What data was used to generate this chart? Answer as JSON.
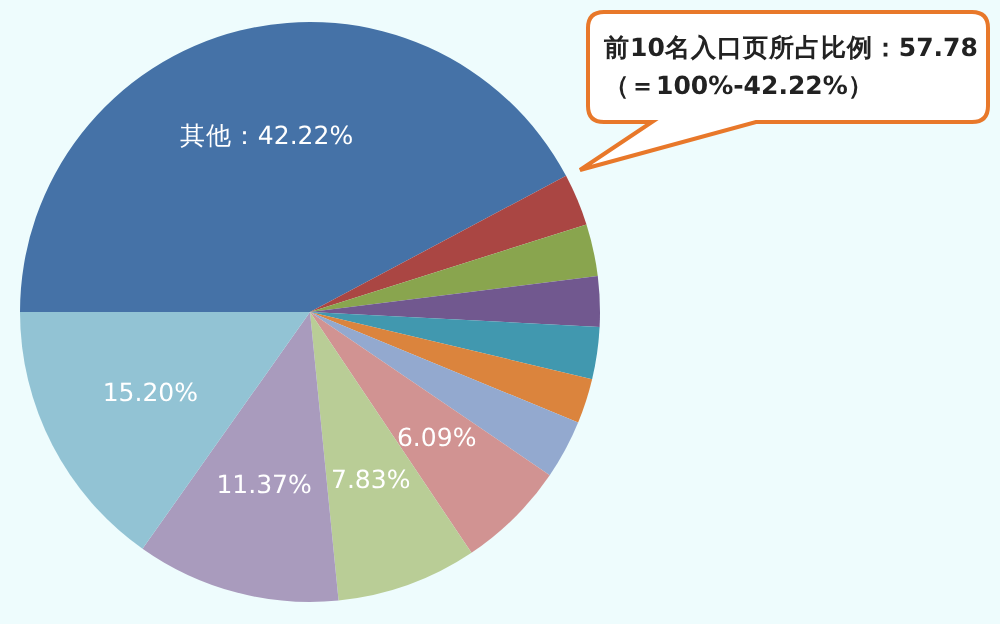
{
  "chart_data": {
    "type": "pie",
    "categories": [
      "其他",
      null,
      null,
      null,
      null,
      null,
      null,
      null,
      null,
      null,
      null
    ],
    "values": [
      42.22,
      2.9,
      2.9,
      2.8,
      2.9,
      2.5,
      3.29,
      6.09,
      7.83,
      11.37,
      15.2
    ],
    "colors": [
      "#4572a7",
      "#aa4643",
      "#89a54e",
      "#71588f",
      "#4198af",
      "#db843d",
      "#93a9cf",
      "#d19392",
      "#b9cd96",
      "#a99bbd",
      "#92c3d4"
    ],
    "value_labels": [
      "42.22%",
      null,
      null,
      null,
      null,
      null,
      null,
      "6.09%",
      "7.83%",
      "11.37%",
      "15.20%"
    ],
    "annotations": [
      "前10名入口页所占比例：57.78",
      "（＝100%-42.22%）"
    ]
  }
}
